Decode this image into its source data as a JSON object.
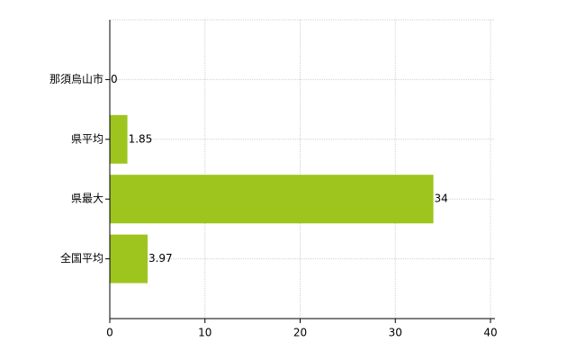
{
  "chart_data": {
    "type": "bar",
    "orientation": "horizontal",
    "categories": [
      "那須烏山市",
      "県平均",
      "県最大",
      "全国平均"
    ],
    "values": [
      0,
      1.85,
      34,
      3.97
    ],
    "color": "#9ec51e",
    "xlim": [
      0,
      40
    ],
    "xticks": [
      0,
      10,
      20,
      30,
      40
    ],
    "grid": true,
    "data_labels": true
  }
}
